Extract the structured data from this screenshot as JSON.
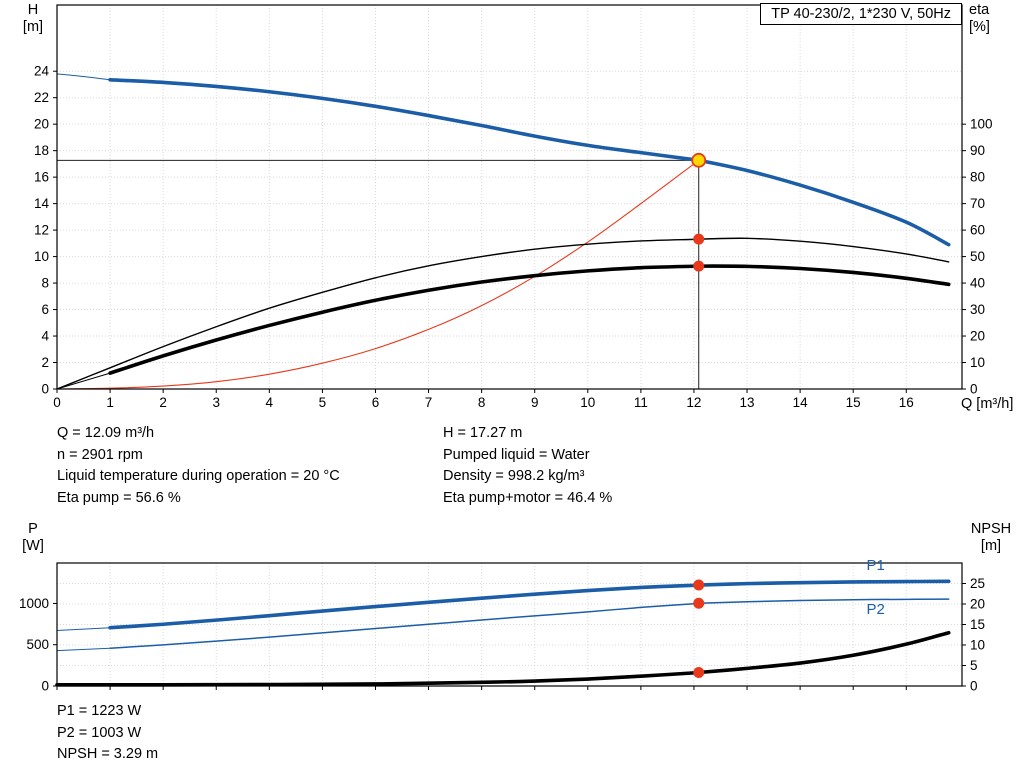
{
  "title_box": "TP 40-230/2, 1*230 V, 50Hz",
  "axes_labels": {
    "h": "H",
    "h_unit": "[m]",
    "eta": "eta",
    "eta_unit": "[%]",
    "q": "Q [m³/h]",
    "p": "P",
    "p_unit": "[W]",
    "npsh": "NPSH",
    "npsh_unit": "[m]"
  },
  "annotations": {
    "left": [
      "Q = 12.09 m³/h",
      "n = 2901 rpm",
      "Liquid temperature during operation = 20 °C",
      "Eta pump = 56.6 %"
    ],
    "right": [
      "H = 17.27 m",
      "Pumped liquid = Water",
      "Density = 998.2 kg/m³",
      "Eta pump+motor = 46.4 %"
    ],
    "bottom": [
      "P1 = 1223 W",
      "P2 = 1003 W",
      "NPSH = 3.29 m"
    ]
  },
  "colors": {
    "blue": "#1c5da8",
    "red": "#e8391d",
    "yellow": "#ffd800",
    "black": "#000000",
    "grid": "#d9d9d9"
  },
  "chart_data": [
    {
      "id": "hq",
      "type": "line",
      "title": "TP 40-230/2, 1*230 V, 50Hz",
      "xlabel": "Q [m³/h]",
      "ylabel_left": "H [m]",
      "ylabel_right": "eta [%]",
      "x_axis": {
        "min": 0,
        "max": 17.05,
        "ticks": [
          0,
          1,
          2,
          3,
          4,
          5,
          6,
          7,
          8,
          9,
          10,
          11,
          12,
          13,
          14,
          15,
          16
        ],
        "show_tick_labels": true
      },
      "y_left": {
        "min": 0,
        "max": 29,
        "ticks": [
          0,
          2,
          4,
          6,
          8,
          10,
          12,
          14,
          16,
          18,
          20,
          22,
          24
        ],
        "grid": true
      },
      "y_right": {
        "min": 0,
        "max": 145,
        "ticks": [
          0,
          10,
          20,
          30,
          40,
          50,
          60,
          70,
          80,
          90,
          100
        ],
        "grid": false
      },
      "operating_point": {
        "Q": 12.09,
        "H": 17.27,
        "eta_pump": 56.6,
        "eta_pump_motor": 46.4
      },
      "crosshair": {
        "x": 12.09,
        "y": 17.27
      },
      "series": [
        {
          "name": "H-curve-lead",
          "axis": "left",
          "color": "blue",
          "width": 1,
          "points": [
            [
              0,
              23.8
            ],
            [
              0.5,
              23.6
            ],
            [
              1,
              23.35
            ]
          ]
        },
        {
          "name": "H-curve",
          "axis": "left",
          "color": "blue",
          "width": 3.6,
          "points": [
            [
              1,
              23.35
            ],
            [
              2,
              23.15
            ],
            [
              3,
              22.85
            ],
            [
              4,
              22.45
            ],
            [
              5,
              21.95
            ],
            [
              6,
              21.35
            ],
            [
              7,
              20.65
            ],
            [
              8,
              19.9
            ],
            [
              9,
              19.1
            ],
            [
              10,
              18.4
            ],
            [
              11,
              17.85
            ],
            [
              12,
              17.32
            ],
            [
              12.09,
              17.27
            ],
            [
              13,
              16.5
            ],
            [
              14,
              15.4
            ],
            [
              15,
              14.1
            ],
            [
              16,
              12.6
            ],
            [
              16.8,
              10.9
            ]
          ]
        },
        {
          "name": "system-curve",
          "axis": "left",
          "color": "red",
          "width": 1.1,
          "points": [
            [
              0,
              0
            ],
            [
              1,
              0.06
            ],
            [
              2,
              0.22
            ],
            [
              3,
              0.55
            ],
            [
              4,
              1.12
            ],
            [
              5,
              1.95
            ],
            [
              6,
              3.05
            ],
            [
              7,
              4.5
            ],
            [
              8,
              6.3
            ],
            [
              9,
              8.5
            ],
            [
              10,
              11.1
            ],
            [
              11,
              14.0
            ],
            [
              12,
              17.0
            ],
            [
              12.09,
              17.27
            ]
          ]
        },
        {
          "name": "eta-pump",
          "axis": "right",
          "color": "black",
          "width": 1.4,
          "points": [
            [
              0,
              0
            ],
            [
              1,
              8
            ],
            [
              2,
              16
            ],
            [
              3,
              23.5
            ],
            [
              4,
              30.5
            ],
            [
              5,
              36.5
            ],
            [
              6,
              42
            ],
            [
              7,
              46.5
            ],
            [
              8,
              50
            ],
            [
              9,
              52.8
            ],
            [
              10,
              54.7
            ],
            [
              11,
              55.9
            ],
            [
              12,
              56.5
            ],
            [
              12.09,
              56.6
            ],
            [
              13,
              56.9
            ],
            [
              14,
              55.8
            ],
            [
              15,
              53.8
            ],
            [
              16,
              51
            ],
            [
              16.8,
              48
            ]
          ]
        },
        {
          "name": "eta-pump-motor-lead",
          "axis": "right",
          "color": "black",
          "width": 1,
          "points": [
            [
              0,
              0
            ],
            [
              1,
              6
            ]
          ]
        },
        {
          "name": "eta-pump-motor",
          "axis": "right",
          "color": "black",
          "width": 3.6,
          "points": [
            [
              1,
              6
            ],
            [
              2,
              12.5
            ],
            [
              3,
              18.5
            ],
            [
              4,
              24
            ],
            [
              5,
              29
            ],
            [
              6,
              33.5
            ],
            [
              7,
              37.3
            ],
            [
              8,
              40.4
            ],
            [
              9,
              42.8
            ],
            [
              10,
              44.6
            ],
            [
              11,
              45.8
            ],
            [
              12,
              46.35
            ],
            [
              12.09,
              46.4
            ],
            [
              13,
              46.3
            ],
            [
              14,
              45.5
            ],
            [
              15,
              44
            ],
            [
              16,
              41.8
            ],
            [
              16.8,
              39.5
            ]
          ]
        }
      ],
      "markers": [
        {
          "name": "eta-pump-point",
          "x": 12.09,
          "y": 56.6,
          "axis": "right",
          "r": 5,
          "fill": "red",
          "stroke": "red",
          "stroke_width": 1
        },
        {
          "name": "eta-pump-motor-point",
          "x": 12.09,
          "y": 46.4,
          "axis": "right",
          "r": 5,
          "fill": "red",
          "stroke": "red",
          "stroke_width": 1
        },
        {
          "name": "duty-point",
          "x": 12.09,
          "y": 17.27,
          "axis": "left",
          "r": 6.5,
          "fill": "yellow",
          "stroke": "red",
          "stroke_width": 1.8
        }
      ],
      "labels": []
    },
    {
      "id": "power-npsh",
      "type": "line",
      "xlabel": "",
      "ylabel_left": "P [W]",
      "ylabel_right": "NPSH [m]",
      "x_axis": {
        "min": 0,
        "max": 17.05,
        "ticks": [
          0,
          1,
          2,
          3,
          4,
          5,
          6,
          7,
          8,
          9,
          10,
          11,
          12,
          13,
          14,
          15,
          16
        ],
        "show_tick_labels": false
      },
      "y_left": {
        "min": 0,
        "max": 1490,
        "ticks": [
          0,
          500,
          1000
        ],
        "grid": false
      },
      "y_right": {
        "min": 0,
        "max": 30,
        "ticks": [
          0,
          5,
          10,
          15,
          20,
          25
        ],
        "grid": true
      },
      "operating_point": {
        "Q": 12.09,
        "P1": 1223,
        "P2": 1003,
        "NPSH": 3.29
      },
      "series": [
        {
          "name": "P1-lead",
          "axis": "left",
          "color": "blue",
          "width": 1,
          "points": [
            [
              0,
              672
            ],
            [
              1,
              706
            ]
          ]
        },
        {
          "name": "P1",
          "axis": "left",
          "color": "blue",
          "width": 3.6,
          "points": [
            [
              1,
              706
            ],
            [
              2,
              748
            ],
            [
              3,
              798
            ],
            [
              4,
              852
            ],
            [
              5,
              908
            ],
            [
              6,
              962
            ],
            [
              7,
              1014
            ],
            [
              8,
              1064
            ],
            [
              9,
              1112
            ],
            [
              10,
              1156
            ],
            [
              11,
              1194
            ],
            [
              12,
              1220
            ],
            [
              12.09,
              1223
            ],
            [
              13,
              1240
            ],
            [
              14,
              1252
            ],
            [
              15,
              1260
            ],
            [
              16,
              1265
            ],
            [
              16.8,
              1268
            ]
          ]
        },
        {
          "name": "P2-lead",
          "axis": "left",
          "color": "blue",
          "width": 1,
          "points": [
            [
              0,
              428
            ],
            [
              1,
              458
            ]
          ]
        },
        {
          "name": "P2",
          "axis": "left",
          "color": "blue",
          "width": 1.5,
          "points": [
            [
              1,
              458
            ],
            [
              2,
              498
            ],
            [
              3,
              543
            ],
            [
              4,
              592
            ],
            [
              5,
              644
            ],
            [
              6,
              696
            ],
            [
              7,
              748
            ],
            [
              8,
              800
            ],
            [
              9,
              850
            ],
            [
              10,
              898
            ],
            [
              11,
              952
            ],
            [
              12,
              996
            ],
            [
              12.09,
              1003
            ],
            [
              13,
              1020
            ],
            [
              14,
              1035
            ],
            [
              15,
              1045
            ],
            [
              16,
              1050
            ],
            [
              16.8,
              1052
            ]
          ]
        },
        {
          "name": "NPSH",
          "axis": "right",
          "color": "black",
          "width": 3.6,
          "points": [
            [
              0,
              0.3
            ],
            [
              2,
              0.3
            ],
            [
              4,
              0.35
            ],
            [
              6,
              0.5
            ],
            [
              8,
              0.9
            ],
            [
              9,
              1.2
            ],
            [
              10,
              1.7
            ],
            [
              11,
              2.4
            ],
            [
              12,
              3.2
            ],
            [
              12.09,
              3.29
            ],
            [
              13,
              4.3
            ],
            [
              14,
              5.6
            ],
            [
              15,
              7.5
            ],
            [
              16,
              10.2
            ],
            [
              16.8,
              13.0
            ]
          ]
        }
      ],
      "markers": [
        {
          "name": "p1-point",
          "x": 12.09,
          "y": 1223,
          "axis": "left",
          "r": 5,
          "fill": "red",
          "stroke": "red",
          "stroke_width": 1
        },
        {
          "name": "p2-point",
          "x": 12.09,
          "y": 1003,
          "axis": "left",
          "r": 5,
          "fill": "red",
          "stroke": "red",
          "stroke_width": 1
        },
        {
          "name": "npsh-point",
          "x": 12.09,
          "y": 3.29,
          "axis": "right",
          "r": 5,
          "fill": "red",
          "stroke": "red",
          "stroke_width": 1
        }
      ],
      "labels": [
        {
          "text": "P1",
          "x": 15.25,
          "y": 1405,
          "axis": "left",
          "color": "blue"
        },
        {
          "text": "P2",
          "x": 15.25,
          "y": 870,
          "axis": "left",
          "color": "blue"
        }
      ]
    }
  ]
}
